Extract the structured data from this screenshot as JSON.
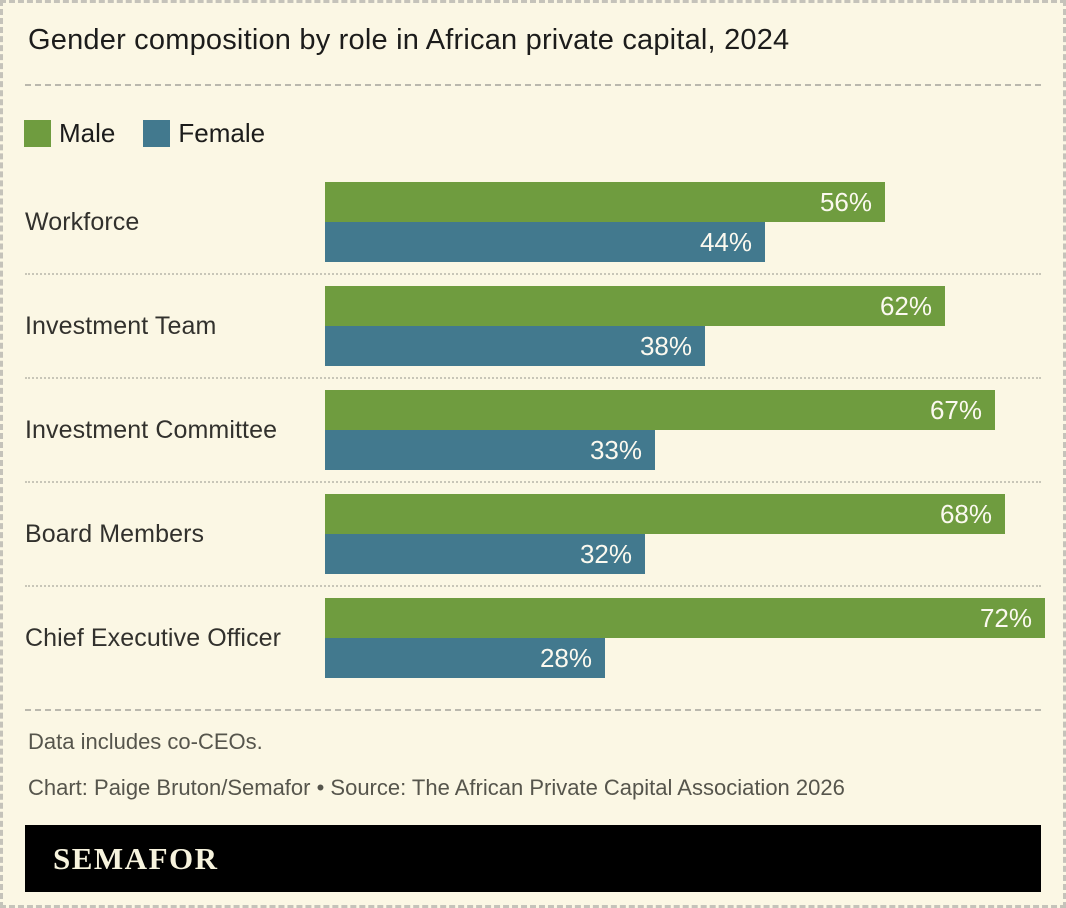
{
  "title": "Gender composition by role in African private capital, 2024",
  "legend": {
    "items": [
      {
        "label": "Male",
        "color": "#6f9c3f"
      },
      {
        "label": "Female",
        "color": "#42798e"
      }
    ]
  },
  "chart_data": {
    "type": "bar",
    "orientation": "horizontal",
    "categories": [
      "Workforce",
      "Investment Team",
      "Investment Committee",
      "Board Members",
      "Chief Executive Officer"
    ],
    "series": [
      {
        "name": "Male",
        "color": "#6f9c3f",
        "values": [
          56,
          62,
          67,
          68,
          72
        ]
      },
      {
        "name": "Female",
        "color": "#42798e",
        "values": [
          44,
          38,
          33,
          32,
          28
        ]
      }
    ],
    "unit": "%",
    "xlim": [
      0,
      100
    ],
    "value_labels": "inside-end",
    "legend_position": "top-left",
    "grid": false
  },
  "notes": {
    "footnote": "Data includes co-CEOs.",
    "credit": "Chart: Paige Bruton/Semafor • Source: The African Private Capital Association 2026"
  },
  "branding": {
    "wordmark": "SEMAFOR"
  },
  "colors": {
    "background": "#fbf7e4",
    "male": "#6f9c3f",
    "female": "#42798e",
    "banner": "#000000",
    "value_label": "#fbf9ef",
    "muted_text": "#56554c"
  }
}
